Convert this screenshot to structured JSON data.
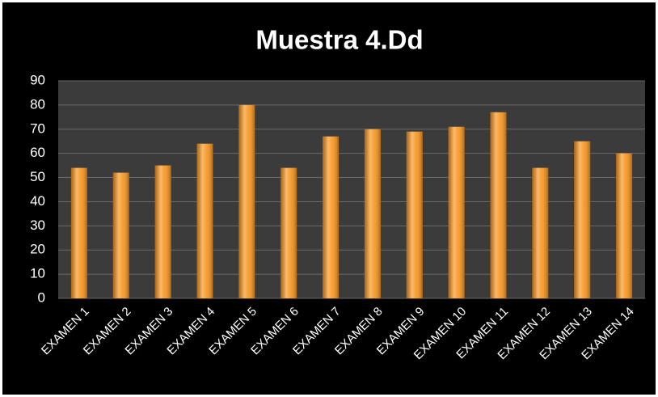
{
  "chart_data": {
    "type": "bar",
    "title": "Muestra 4.Dd",
    "categories": [
      "EXAMEN 1",
      "EXAMEN 2",
      "EXAMEN 3",
      "EXAMEN 4",
      "EXAMEN 5",
      "EXAMEN 6",
      "EXAMEN 7",
      "EXAMEN 8",
      "EXAMEN 9",
      "EXAMEN 10",
      "EXAMEN 11",
      "EXAMEN 12",
      "EXAMEN 13",
      "EXAMEN 14"
    ],
    "values": [
      54,
      52,
      55,
      64,
      80,
      54,
      67,
      70,
      69,
      71,
      77,
      54,
      65,
      60
    ],
    "color": "#f7941d",
    "ylim": [
      0,
      90
    ],
    "yticks": [
      0,
      10,
      20,
      30,
      40,
      50,
      60,
      70,
      80,
      90
    ],
    "grid": true
  }
}
